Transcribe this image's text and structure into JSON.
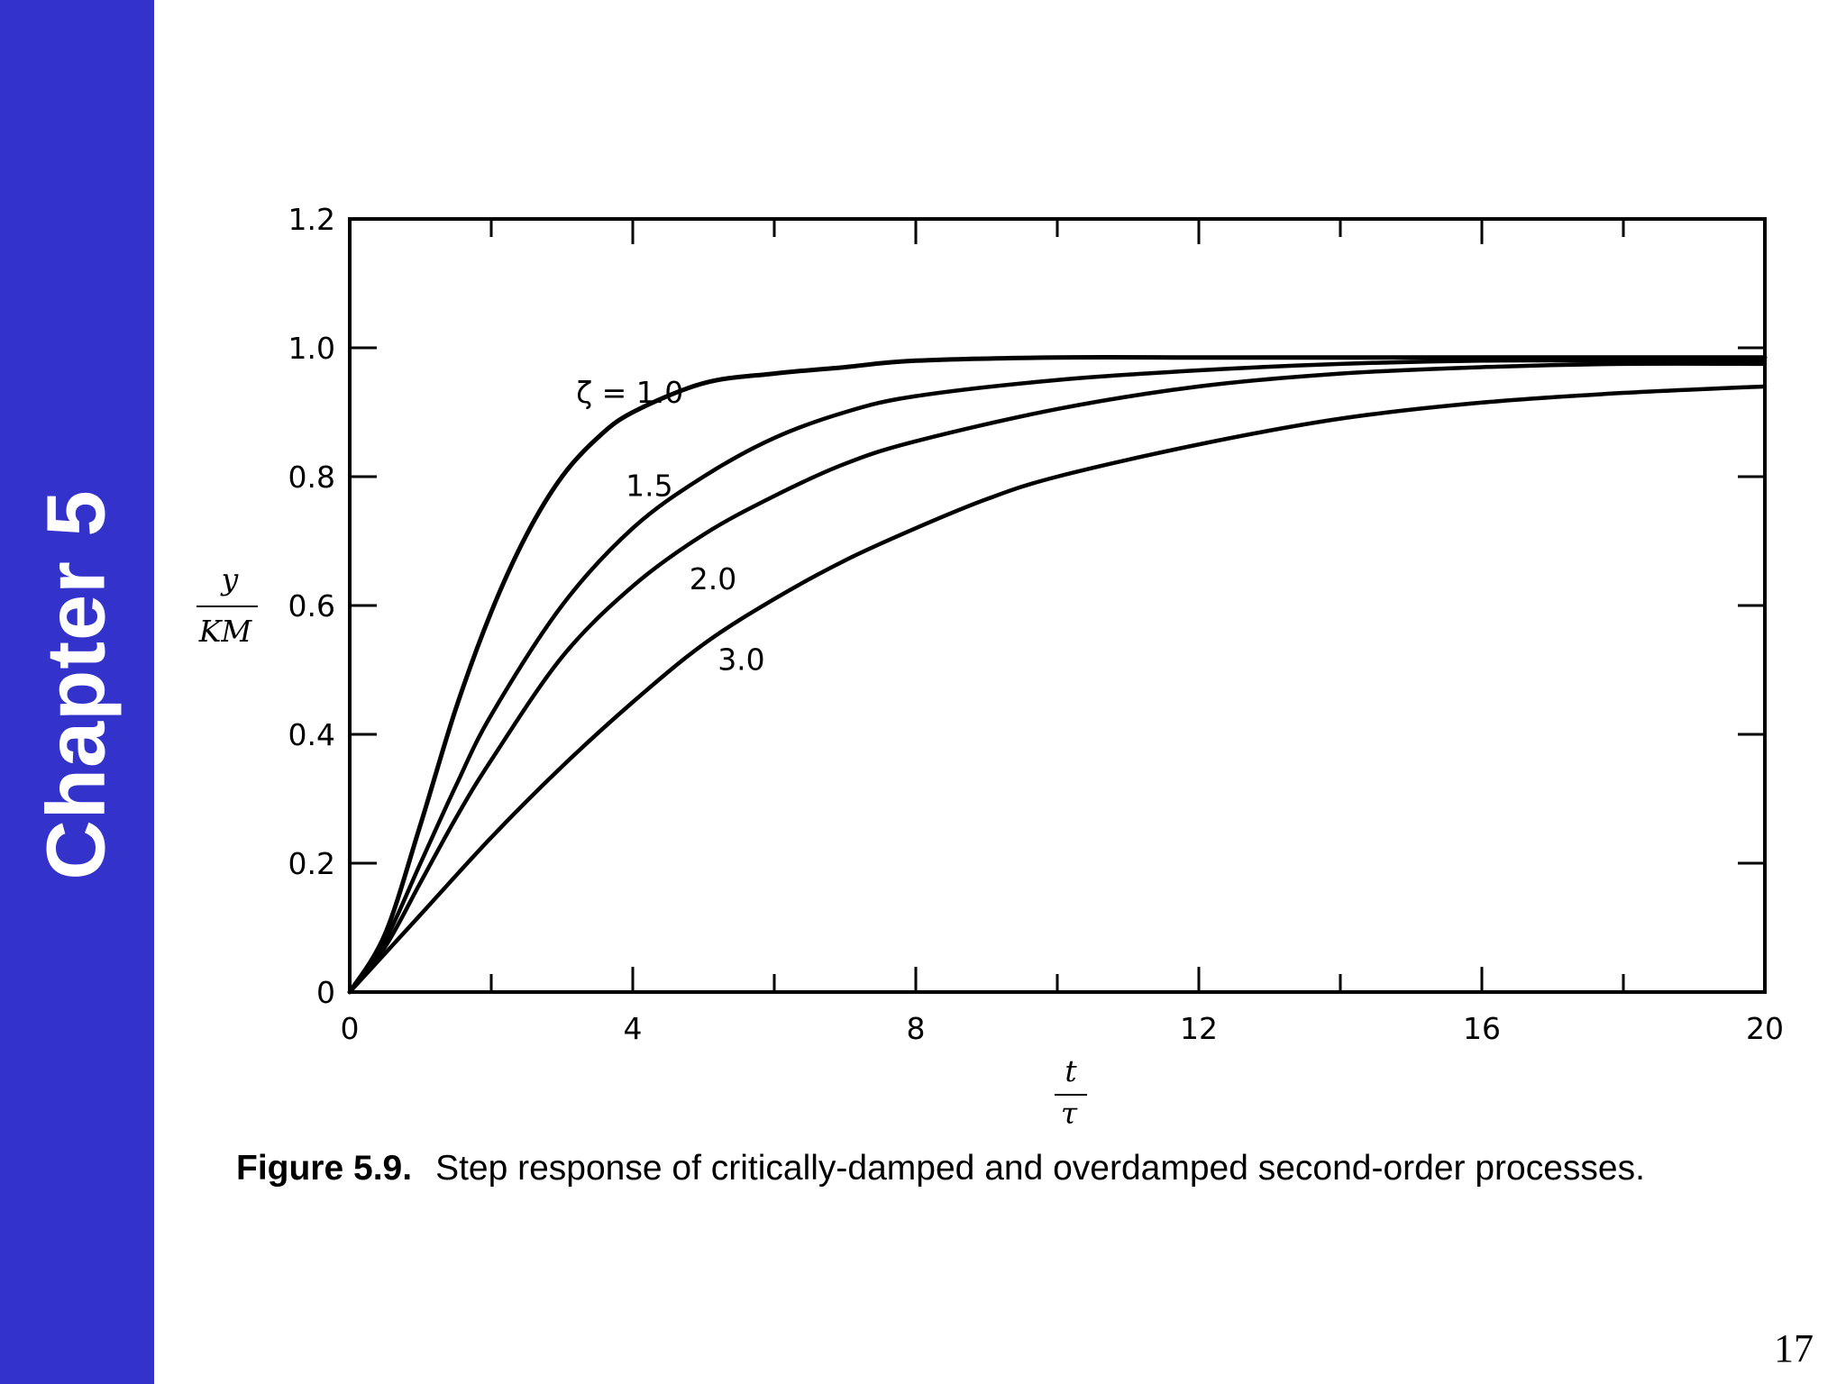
{
  "sidebar": {
    "chapter_label": "Chapter 5",
    "color": "#3333cc"
  },
  "page_number": "17",
  "caption": {
    "figure_label": "Figure 5.9.",
    "text": "Step response of critically-damped and overdamped second-order processes."
  },
  "chart_data": {
    "type": "line",
    "title": "",
    "xlim": [
      0,
      20
    ],
    "ylim": [
      0,
      1.2
    ],
    "x_ticks": [
      0,
      4,
      8,
      12,
      16,
      20
    ],
    "x_tick_labels": [
      "0",
      "4",
      "8",
      "12",
      "16",
      "20"
    ],
    "y_ticks": [
      0,
      0.2,
      0.4,
      0.6,
      0.8,
      1.0,
      1.2
    ],
    "y_tick_labels": [
      "0",
      "0.2",
      "0.4",
      "0.6",
      "0.8",
      "1.0",
      "1.2"
    ],
    "xlabel": {
      "numerator": "t",
      "denominator": "τ"
    },
    "ylabel": {
      "numerator": "y",
      "denominator": "KM"
    },
    "grid": false,
    "series": [
      {
        "name": "ζ = 1.0",
        "x": [
          0,
          0.5,
          1,
          1.5,
          2,
          2.5,
          3,
          3.5,
          4,
          5,
          6,
          7,
          8,
          10,
          12,
          14,
          16,
          18,
          20
        ],
        "y": [
          0,
          0.09,
          0.26,
          0.44,
          0.59,
          0.71,
          0.8,
          0.86,
          0.9,
          0.945,
          0.96,
          0.97,
          0.98,
          0.985,
          0.985,
          0.985,
          0.985,
          0.985,
          0.985
        ]
      },
      {
        "name": "1.5",
        "x": [
          0,
          0.5,
          1,
          1.5,
          2,
          3,
          4,
          5,
          6,
          7,
          8,
          10,
          12,
          14,
          16,
          18,
          20
        ],
        "y": [
          0,
          0.08,
          0.2,
          0.32,
          0.43,
          0.6,
          0.72,
          0.8,
          0.86,
          0.9,
          0.925,
          0.95,
          0.965,
          0.975,
          0.98,
          0.98,
          0.98
        ]
      },
      {
        "name": "2.0",
        "x": [
          0,
          0.5,
          1,
          1.5,
          2,
          3,
          4,
          5,
          6,
          7,
          8,
          10,
          12,
          14,
          16,
          18,
          20
        ],
        "y": [
          0,
          0.07,
          0.17,
          0.27,
          0.36,
          0.52,
          0.63,
          0.71,
          0.77,
          0.82,
          0.855,
          0.905,
          0.94,
          0.96,
          0.97,
          0.975,
          0.975
        ]
      },
      {
        "name": "3.0",
        "x": [
          0,
          0.5,
          1,
          2,
          3,
          4,
          5,
          6,
          7,
          8,
          9,
          10,
          12,
          14,
          16,
          18,
          20
        ],
        "y": [
          0,
          0.06,
          0.12,
          0.24,
          0.35,
          0.45,
          0.54,
          0.61,
          0.67,
          0.72,
          0.765,
          0.8,
          0.85,
          0.89,
          0.915,
          0.93,
          0.94
        ]
      }
    ],
    "annotations": [
      {
        "text": "ζ = 1.0",
        "series": "ζ = 1.0",
        "x": 3.2,
        "y": 0.915
      },
      {
        "text": "1.5",
        "series": "1.5",
        "x": 3.9,
        "y": 0.77
      },
      {
        "text": "2.0",
        "series": "2.0",
        "x": 4.8,
        "y": 0.625
      },
      {
        "text": "3.0",
        "series": "3.0",
        "x": 5.2,
        "y": 0.5
      }
    ]
  }
}
